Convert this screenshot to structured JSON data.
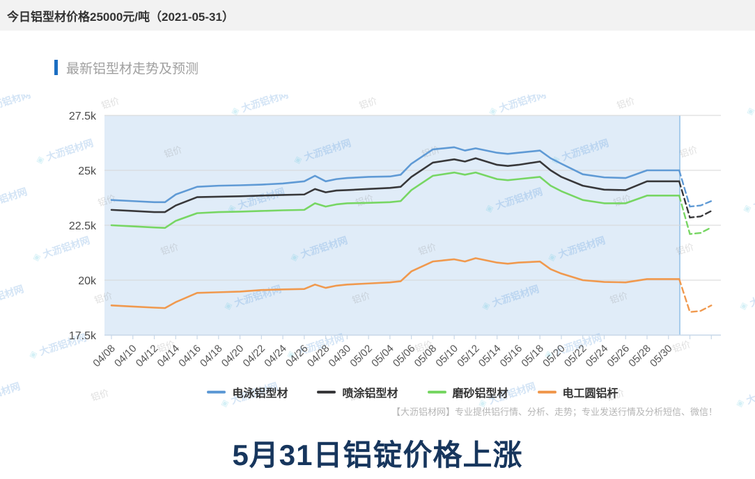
{
  "banner": {
    "text": "今日铝型材价格25000元/吨（2021-05-31）"
  },
  "section": {
    "title": "最新铝型材走势及预测",
    "accent_color": "#1b6ec2"
  },
  "watermark": {
    "icon": "◈",
    "brand": "大沥铝材网",
    "label": "铝价"
  },
  "chart_data": {
    "type": "line",
    "title": "最新铝型材走势及预测",
    "xlabel": "",
    "ylabel": "",
    "ylim": [
      17.5,
      27.5
    ],
    "grid": true,
    "legend_position": "bottom",
    "plot_bg_color": "#e0ecf8",
    "forecast_divider_color": "#a9cdec",
    "grid_color": "#d6d6d6",
    "axis_color": "#c7d7e8",
    "yticks": {
      "values": [
        27.5,
        25,
        22.5,
        20,
        17.5
      ],
      "labels": [
        "27.5k",
        "25k",
        "22.5k",
        "20k",
        "17.5k"
      ]
    },
    "xtick_labels": [
      "04/08",
      "04/10",
      "04/12",
      "04/14",
      "04/16",
      "04/18",
      "04/20",
      "04/22",
      "04/24",
      "04/26",
      "04/28",
      "04/30",
      "05/02",
      "05/04",
      "05/06",
      "05/08",
      "05/10",
      "05/12",
      "05/14",
      "05/16",
      "05/18",
      "05/20",
      "05/22",
      "05/24",
      "05/26",
      "05/28",
      "05/30"
    ],
    "history_end": "05/31",
    "x": [
      "04/08",
      "04/10",
      "04/12",
      "04/13",
      "04/14",
      "04/16",
      "04/18",
      "04/20",
      "04/22",
      "04/24",
      "04/26",
      "04/27",
      "04/28",
      "04/29",
      "04/30",
      "05/02",
      "05/04",
      "05/05",
      "05/06",
      "05/08",
      "05/10",
      "05/11",
      "05/12",
      "05/14",
      "05/15",
      "05/16",
      "05/18",
      "05/19",
      "05/20",
      "05/22",
      "05/24",
      "05/26",
      "05/28",
      "05/30",
      "05/31"
    ],
    "forecast_x": [
      "05/31",
      "06/01",
      "06/02",
      "06/03"
    ],
    "series": [
      {
        "name": "电泳铝型材",
        "color": "#5f9ad5",
        "values": [
          23.65,
          23.6,
          23.55,
          23.55,
          23.9,
          24.25,
          24.3,
          24.32,
          24.35,
          24.4,
          24.5,
          24.75,
          24.5,
          24.6,
          24.65,
          24.7,
          24.72,
          24.8,
          25.3,
          25.95,
          26.05,
          25.9,
          26.0,
          25.8,
          25.75,
          25.8,
          25.9,
          25.55,
          25.3,
          24.82,
          24.68,
          24.65,
          25.0,
          25.0,
          25.0
        ],
        "forecast_values": [
          25.0,
          23.35,
          23.4,
          23.6
        ]
      },
      {
        "name": "喷涂铝型材",
        "color": "#38383a",
        "values": [
          23.2,
          23.15,
          23.1,
          23.1,
          23.4,
          23.78,
          23.8,
          23.82,
          23.85,
          23.88,
          23.9,
          24.15,
          24.0,
          24.08,
          24.1,
          24.15,
          24.2,
          24.25,
          24.7,
          25.35,
          25.5,
          25.4,
          25.55,
          25.25,
          25.2,
          25.25,
          25.4,
          25.0,
          24.7,
          24.3,
          24.12,
          24.1,
          24.5,
          24.5,
          24.5
        ],
        "forecast_values": [
          24.5,
          22.85,
          22.9,
          23.15
        ]
      },
      {
        "name": "磨砂铝型材",
        "color": "#77d663",
        "values": [
          22.5,
          22.45,
          22.4,
          22.38,
          22.7,
          23.05,
          23.1,
          23.12,
          23.15,
          23.18,
          23.2,
          23.5,
          23.35,
          23.45,
          23.5,
          23.52,
          23.55,
          23.6,
          24.1,
          24.75,
          24.9,
          24.8,
          24.9,
          24.6,
          24.55,
          24.6,
          24.7,
          24.3,
          24.05,
          23.65,
          23.5,
          23.5,
          23.85,
          23.85,
          23.85
        ],
        "forecast_values": [
          23.85,
          22.1,
          22.15,
          22.4
        ]
      },
      {
        "name": "电工圆铝杆",
        "color": "#f0994e",
        "values": [
          18.85,
          18.8,
          18.75,
          18.73,
          19.0,
          19.42,
          19.45,
          19.48,
          19.55,
          19.58,
          19.6,
          19.8,
          19.65,
          19.75,
          19.8,
          19.85,
          19.9,
          19.95,
          20.4,
          20.85,
          20.95,
          20.85,
          21.0,
          20.8,
          20.75,
          20.8,
          20.85,
          20.5,
          20.3,
          20.0,
          19.92,
          19.9,
          20.05,
          20.05,
          20.05
        ],
        "forecast_values": [
          20.05,
          18.55,
          18.6,
          18.85
        ]
      }
    ]
  },
  "footer_note": {
    "text": "【大沥铝材网】专业提供铝行情、分析、走势；专业发送行情及分析短信、微信！"
  },
  "headline": {
    "text": "5月31日铝锭价格上涨",
    "color": "#17365d"
  }
}
